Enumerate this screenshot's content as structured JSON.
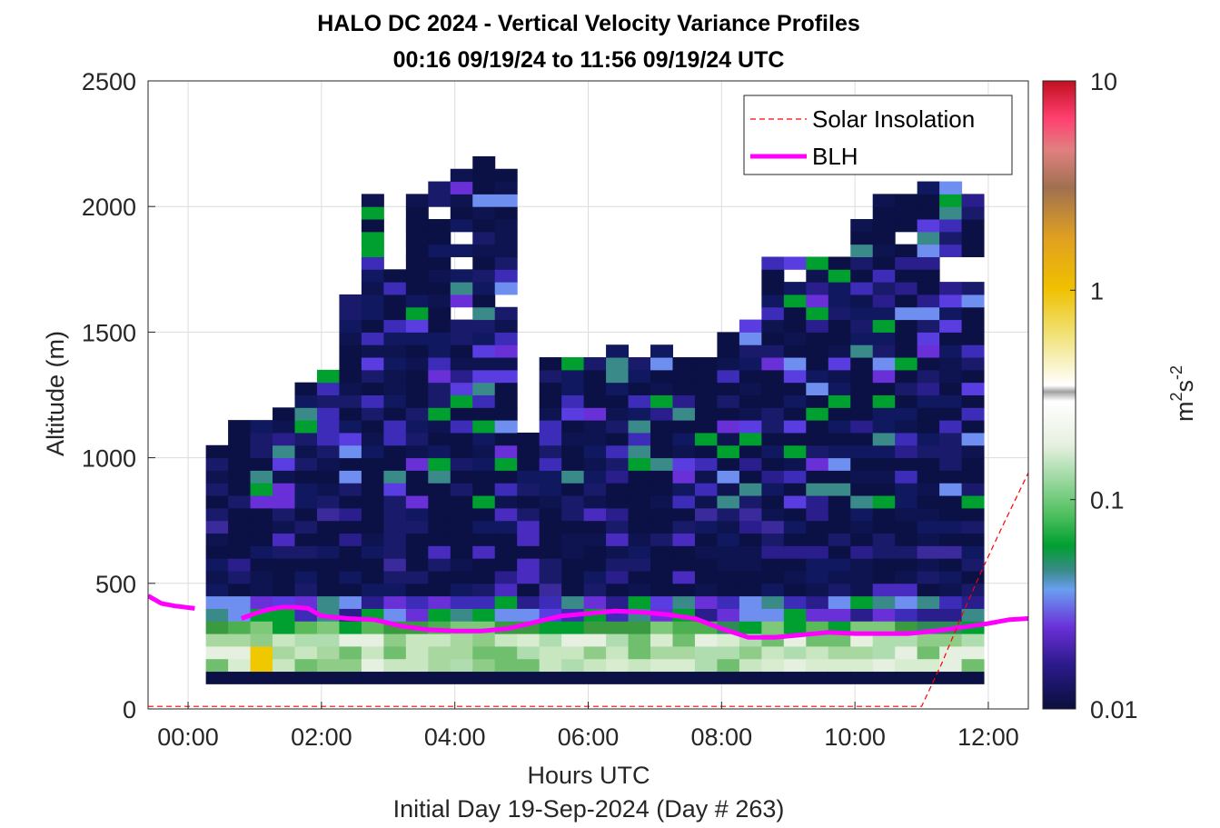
{
  "chart_data": {
    "type": "heatmap",
    "title": "HALO DC 2024 - Vertical Velocity Variance Profiles",
    "subtitle": "00:16 09/19/24 to 11:56 09/19/24  UTC",
    "xlabel": "Hours UTC",
    "xlabel2": "Initial Day 19-Sep-2024 (Day # 263)",
    "ylabel": "Altitude (m)",
    "xlim": [
      -0.6,
      12.6
    ],
    "ylim": [
      0,
      2500
    ],
    "x_ticks": [
      0,
      2,
      4,
      6,
      8,
      10,
      12
    ],
    "x_tick_labels": [
      "00:00",
      "02:00",
      "04:00",
      "06:00",
      "08:00",
      "10:00",
      "12:00"
    ],
    "y_ticks": [
      0,
      500,
      1000,
      1500,
      2000,
      2500
    ],
    "y_tick_labels": [
      "0",
      "500",
      "1000",
      "1500",
      "2000",
      "2500"
    ],
    "grid": true,
    "colorbar": {
      "scale": "log",
      "range": [
        0.01,
        10
      ],
      "tick_values": [
        0.01,
        0.1,
        1,
        10
      ],
      "tick_labels": [
        "0.01",
        "0.1",
        "1",
        "10"
      ],
      "label_base": "m",
      "label_sup1": "2",
      "label_mid": "s",
      "label_sup2": "-2"
    },
    "legend": {
      "placement": "top-right",
      "entries": [
        {
          "name": "Solar Insolation",
          "style": "dashed",
          "color": "#ff0000"
        },
        {
          "name": "BLH",
          "style": "solid",
          "color": "#ff00ff"
        }
      ]
    },
    "heatmap": {
      "x_start": 0.2667,
      "x_end": 11.9333,
      "n_columns": 35,
      "y_bottom": 100,
      "cell_height": 50,
      "description_levels_m2s2": "bottom row ~0.01; 150-300 m 0.05-0.3; 300-400 m ~0.03-0.1; above ~0.01-0.03"
    },
    "series": [
      {
        "name": "BLH",
        "x": [
          -0.6,
          -0.4,
          -0.2,
          0.1,
          0.5,
          0.8,
          1.0,
          1.2,
          1.4,
          1.6,
          1.8,
          2.0,
          2.4,
          2.8,
          3.2,
          3.6,
          4.0,
          4.4,
          4.8,
          5.2,
          5.6,
          6.0,
          6.4,
          6.8,
          7.2,
          7.6,
          8.0,
          8.4,
          8.8,
          9.2,
          9.6,
          10.0,
          10.4,
          10.8,
          11.2,
          11.6,
          12.0,
          12.3,
          12.6
        ],
        "y": [
          450,
          420,
          410,
          400,
          null,
          360,
          380,
          395,
          405,
          405,
          400,
          370,
          360,
          355,
          330,
          315,
          310,
          310,
          320,
          345,
          370,
          380,
          390,
          385,
          375,
          360,
          320,
          285,
          285,
          295,
          305,
          300,
          300,
          300,
          310,
          325,
          340,
          355,
          360
        ]
      },
      {
        "name": "Solar Insolation",
        "x": [
          -0.6,
          11.0,
          11.3,
          11.6,
          11.9,
          12.2,
          12.6
        ],
        "y": [
          10,
          10,
          180,
          370,
          550,
          720,
          940
        ]
      }
    ]
  }
}
